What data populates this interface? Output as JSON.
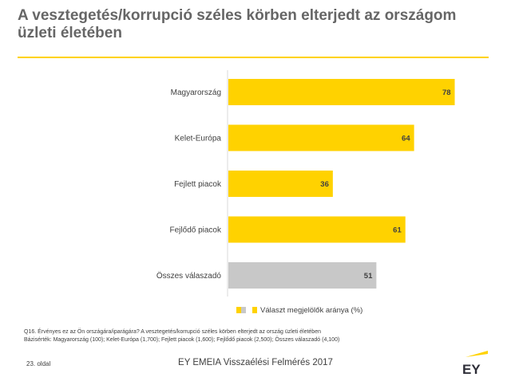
{
  "title": "A vesztegetés/korrupció széles körben elterjedt az országom üzleti életében",
  "chart_data": {
    "type": "bar",
    "orientation": "horizontal",
    "categories": [
      "Magyarország",
      "Kelet-Európa",
      "Fejlett piacok",
      "Fejlődő piacok",
      "Összes válaszadó"
    ],
    "values": [
      78,
      64,
      36,
      61,
      51
    ],
    "series": [
      {
        "name": "Választ megjelölők aránya (%)",
        "values": [
          78,
          64,
          36,
          61,
          51
        ]
      }
    ],
    "bar_colors": [
      "#ffd200",
      "#ffd200",
      "#ffd200",
      "#ffd200",
      "#c8c8c8"
    ],
    "xlim": [
      0,
      100
    ],
    "grid": false,
    "legend_position": "bottom"
  },
  "legend": {
    "label": "Választ megjelölők aránya (%)"
  },
  "footnote": {
    "question": "Q16. Érvényes ez az Ön országára/iparágára? A vesztegetés/korrupció széles körben elterjedt az ország üzleti életében",
    "base": "Bázisérték: Magyarország (100); Kelet-Európa (1,700); Fejlett piacok (1,600); Fejlődő piacok (2,500); Összes válaszadó (4,100)"
  },
  "footer": {
    "page": "23. oldal",
    "report_title": "EY EMEIA Visszaélési Felmérés 2017",
    "logo_text": "EY"
  },
  "colors": {
    "accent": "#ffd200",
    "gray_bar": "#c8c8c8",
    "text": "#404040",
    "title": "#666666"
  }
}
